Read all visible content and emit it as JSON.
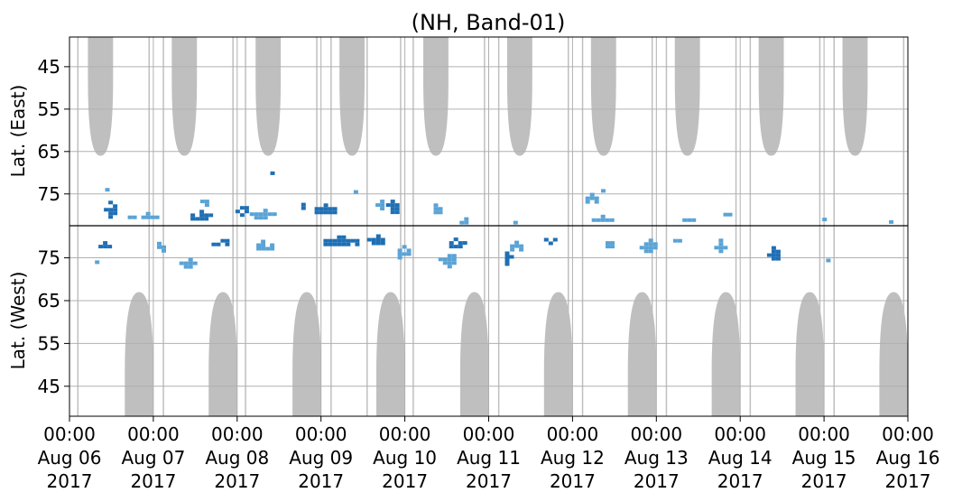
{
  "chart_data": {
    "type": "heatmap",
    "title": "(NH, Band-01)",
    "ylabel_top": "Lat. (East)",
    "ylabel_bottom": "Lat. (West)",
    "x_range": [
      "2017-08-06 00:00",
      "2017-08-16 00:00"
    ],
    "x_ticks": [
      {
        "time": "00:00",
        "date": "Aug 06",
        "year": "2017",
        "day": 0
      },
      {
        "time": "00:00",
        "date": "Aug 07",
        "year": "2017",
        "day": 1
      },
      {
        "time": "00:00",
        "date": "Aug 08",
        "year": "2017",
        "day": 2
      },
      {
        "time": "00:00",
        "date": "Aug 09",
        "year": "2017",
        "day": 3
      },
      {
        "time": "00:00",
        "date": "Aug 10",
        "year": "2017",
        "day": 4
      },
      {
        "time": "00:00",
        "date": "Aug 11",
        "year": "2017",
        "day": 5
      },
      {
        "time": "00:00",
        "date": "Aug 12",
        "year": "2017",
        "day": 6
      },
      {
        "time": "00:00",
        "date": "Aug 13",
        "year": "2017",
        "day": 7
      },
      {
        "time": "00:00",
        "date": "Aug 14",
        "year": "2017",
        "day": 8
      },
      {
        "time": "00:00",
        "date": "Aug 15",
        "year": "2017",
        "day": 9
      },
      {
        "time": "00:00",
        "date": "Aug 16",
        "year": "2017",
        "day": 10
      }
    ],
    "y_ticks_top": [
      "45",
      "55",
      "65",
      "75"
    ],
    "y_ticks_bottom": [
      "75",
      "65",
      "55",
      "45"
    ],
    "lat_range_per_panel": [
      38,
      82.5
    ],
    "grid": true,
    "colors": {
      "no_data": "#bfbfbf",
      "echo_strong": "#1f6fb4",
      "echo_weak": "#5aa3d6",
      "divider": "#000000",
      "grid": "#b0b0b0"
    },
    "no_data_regions": [
      {
        "panel": "east",
        "day_start": 0.22,
        "day_end": 0.52,
        "min_lat": 66
      },
      {
        "panel": "east",
        "day_start": 1.22,
        "day_end": 1.52,
        "min_lat": 66
      },
      {
        "panel": "east",
        "day_start": 2.22,
        "day_end": 2.52,
        "min_lat": 66
      },
      {
        "panel": "east",
        "day_start": 3.22,
        "day_end": 3.52,
        "min_lat": 66
      },
      {
        "panel": "east",
        "day_start": 4.22,
        "day_end": 4.52,
        "min_lat": 66
      },
      {
        "panel": "east",
        "day_start": 5.22,
        "day_end": 5.52,
        "min_lat": 66
      },
      {
        "panel": "east",
        "day_start": 6.22,
        "day_end": 6.52,
        "min_lat": 66
      },
      {
        "panel": "east",
        "day_start": 7.22,
        "day_end": 7.52,
        "min_lat": 66
      },
      {
        "panel": "east",
        "day_start": 8.22,
        "day_end": 8.52,
        "min_lat": 66
      },
      {
        "panel": "east",
        "day_start": 9.22,
        "day_end": 9.52,
        "min_lat": 66
      },
      {
        "panel": "west",
        "day_start": 0.66,
        "day_end": 1.0,
        "min_lat": 67
      },
      {
        "panel": "west",
        "day_start": 1.66,
        "day_end": 2.0,
        "min_lat": 67
      },
      {
        "panel": "west",
        "day_start": 2.66,
        "day_end": 3.0,
        "min_lat": 67
      },
      {
        "panel": "west",
        "day_start": 3.66,
        "day_end": 4.0,
        "min_lat": 67
      },
      {
        "panel": "west",
        "day_start": 4.66,
        "day_end": 5.0,
        "min_lat": 67
      },
      {
        "panel": "west",
        "day_start": 5.66,
        "day_end": 6.0,
        "min_lat": 67
      },
      {
        "panel": "west",
        "day_start": 6.66,
        "day_end": 7.0,
        "min_lat": 67
      },
      {
        "panel": "west",
        "day_start": 7.66,
        "day_end": 8.0,
        "min_lat": 67
      },
      {
        "panel": "west",
        "day_start": 8.66,
        "day_end": 9.0,
        "min_lat": 67
      },
      {
        "panel": "west",
        "day_start": 9.66,
        "day_end": 10.0,
        "min_lat": 67
      }
    ],
    "echo_blobs": [
      {
        "panel": "east",
        "day": 0.48,
        "lat": 78,
        "dday": 0.14,
        "dlat": 4.5,
        "level": "strong"
      },
      {
        "panel": "east",
        "day": 0.45,
        "lat": 73.5,
        "dday": 0.05,
        "dlat": 1.5,
        "level": "weak"
      },
      {
        "panel": "east",
        "day": 0.92,
        "lat": 80,
        "dday": 0.45,
        "dlat": 1.5,
        "level": "weak"
      },
      {
        "panel": "east",
        "day": 1.55,
        "lat": 80,
        "dday": 0.32,
        "dlat": 2.5,
        "level": "strong"
      },
      {
        "panel": "east",
        "day": 1.6,
        "lat": 76.5,
        "dday": 0.08,
        "dlat": 2,
        "level": "weak"
      },
      {
        "panel": "east",
        "day": 2.05,
        "lat": 78.5,
        "dday": 0.14,
        "dlat": 3,
        "level": "strong"
      },
      {
        "panel": "east",
        "day": 2.3,
        "lat": 79.5,
        "dday": 0.3,
        "dlat": 2,
        "level": "weak"
      },
      {
        "panel": "east",
        "day": 2.42,
        "lat": 70,
        "dday": 0.05,
        "dlat": 4,
        "level": "strong"
      },
      {
        "panel": "east",
        "day": 2.62,
        "lat": 76,
        "dday": 0.07,
        "dlat": 2.5,
        "level": "weak"
      },
      {
        "panel": "east",
        "day": 2.75,
        "lat": 77.5,
        "dday": 0.08,
        "dlat": 2.5,
        "level": "strong"
      },
      {
        "panel": "east",
        "day": 3.02,
        "lat": 78.5,
        "dday": 0.3,
        "dlat": 2.5,
        "level": "strong"
      },
      {
        "panel": "east",
        "day": 3.42,
        "lat": 74,
        "dday": 0.06,
        "dlat": 1.5,
        "level": "weak"
      },
      {
        "panel": "east",
        "day": 3.68,
        "lat": 77.5,
        "dday": 0.06,
        "dlat": 4,
        "level": "weak"
      },
      {
        "panel": "east",
        "day": 3.85,
        "lat": 77.5,
        "dday": 0.15,
        "dlat": 4,
        "level": "strong"
      },
      {
        "panel": "east",
        "day": 4.35,
        "lat": 78.5,
        "dday": 0.12,
        "dlat": 2.5,
        "level": "weak"
      },
      {
        "panel": "east",
        "day": 4.15,
        "lat": 73.5,
        "dday": 0.06,
        "dlat": 1.2,
        "level": "weak"
      },
      {
        "panel": "east",
        "day": 4.7,
        "lat": 81,
        "dday": 0.2,
        "dlat": 1.0,
        "level": "weak"
      },
      {
        "panel": "east",
        "day": 5.28,
        "lat": 81,
        "dday": 0.08,
        "dlat": 1,
        "level": "weak"
      },
      {
        "panel": "east",
        "day": 6.2,
        "lat": 76,
        "dday": 0.2,
        "dlat": 2.5,
        "level": "weak"
      },
      {
        "panel": "east",
        "day": 6.38,
        "lat": 74,
        "dday": 0.08,
        "dlat": 2,
        "level": "weak"
      },
      {
        "panel": "east",
        "day": 6.35,
        "lat": 80.5,
        "dday": 0.35,
        "dlat": 1.2,
        "level": "weak"
      },
      {
        "panel": "east",
        "day": 7.3,
        "lat": 80.5,
        "dday": 0.3,
        "dlat": 1.2,
        "level": "weak"
      },
      {
        "panel": "east",
        "day": 7.82,
        "lat": 79,
        "dday": 0.15,
        "dlat": 2.5,
        "level": "weak"
      },
      {
        "panel": "east",
        "day": 8.5,
        "lat": 81,
        "dday": 0.05,
        "dlat": 1,
        "level": "strong"
      },
      {
        "panel": "east",
        "day": 9.02,
        "lat": 80.5,
        "dday": 0.08,
        "dlat": 1.5,
        "level": "weak"
      },
      {
        "panel": "east",
        "day": 9.78,
        "lat": 81.5,
        "dday": 0.12,
        "dlat": 0.6,
        "level": "weak"
      },
      {
        "panel": "west",
        "day": 0.42,
        "lat": 78,
        "dday": 0.15,
        "dlat": 3.5,
        "level": "strong"
      },
      {
        "panel": "west",
        "day": 0.28,
        "lat": 74,
        "dday": 0.06,
        "dlat": 2.5,
        "level": "weak"
      },
      {
        "panel": "west",
        "day": 1.05,
        "lat": 77.5,
        "dday": 0.12,
        "dlat": 2.5,
        "level": "weak"
      },
      {
        "panel": "west",
        "day": 1.4,
        "lat": 74,
        "dday": 0.18,
        "dlat": 2,
        "level": "weak"
      },
      {
        "panel": "west",
        "day": 1.75,
        "lat": 79,
        "dday": 0.22,
        "dlat": 2.5,
        "level": "strong"
      },
      {
        "panel": "west",
        "day": 2.3,
        "lat": 78,
        "dday": 0.25,
        "dlat": 2.5,
        "level": "weak"
      },
      {
        "panel": "west",
        "day": 3.2,
        "lat": 79,
        "dday": 0.45,
        "dlat": 2.5,
        "level": "strong"
      },
      {
        "panel": "west",
        "day": 3.65,
        "lat": 79.5,
        "dday": 0.2,
        "dlat": 2,
        "level": "strong"
      },
      {
        "panel": "west",
        "day": 3.95,
        "lat": 76.5,
        "dday": 0.18,
        "dlat": 3,
        "level": "weak"
      },
      {
        "panel": "west",
        "day": 4.5,
        "lat": 75,
        "dday": 0.2,
        "dlat": 3.5,
        "level": "weak"
      },
      {
        "panel": "west",
        "day": 4.6,
        "lat": 78.5,
        "dday": 0.25,
        "dlat": 2.5,
        "level": "strong"
      },
      {
        "panel": "west",
        "day": 5.2,
        "lat": 75,
        "dday": 0.12,
        "dlat": 3,
        "level": "strong"
      },
      {
        "panel": "west",
        "day": 5.3,
        "lat": 78,
        "dday": 0.2,
        "dlat": 2,
        "level": "weak"
      },
      {
        "panel": "west",
        "day": 5.72,
        "lat": 79.5,
        "dday": 0.12,
        "dlat": 2,
        "level": "strong"
      },
      {
        "panel": "west",
        "day": 6.4,
        "lat": 78.5,
        "dday": 0.12,
        "dlat": 2.5,
        "level": "weak"
      },
      {
        "panel": "west",
        "day": 6.9,
        "lat": 78,
        "dday": 0.2,
        "dlat": 3,
        "level": "weak"
      },
      {
        "panel": "west",
        "day": 7.25,
        "lat": 79.5,
        "dday": 0.1,
        "dlat": 1.5,
        "level": "weak"
      },
      {
        "panel": "west",
        "day": 7.75,
        "lat": 78,
        "dday": 0.12,
        "dlat": 3,
        "level": "weak"
      },
      {
        "panel": "west",
        "day": 8.38,
        "lat": 76,
        "dday": 0.12,
        "dlat": 3.5,
        "level": "strong"
      },
      {
        "panel": "west",
        "day": 9.05,
        "lat": 75,
        "dday": 0.05,
        "dlat": 3,
        "level": "weak"
      }
    ]
  }
}
